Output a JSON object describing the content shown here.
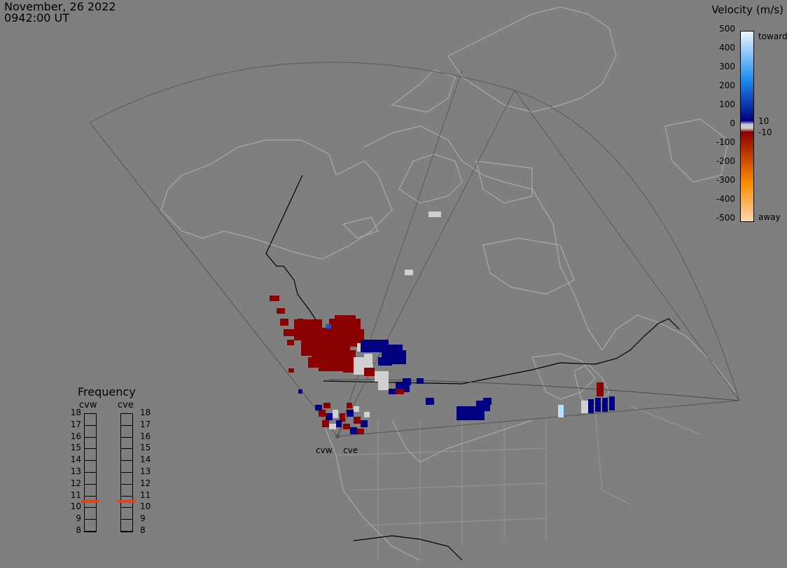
{
  "header": {
    "date": "November, 26 2022",
    "time": "0942:00 UT"
  },
  "velocity_legend": {
    "title": "Velocity (m/s)",
    "ticks": [
      "500",
      "400",
      "300",
      "200",
      "100",
      "0",
      "-100",
      "-200",
      "-300",
      "-400",
      "-500"
    ],
    "side_labels": {
      "toward": "toward",
      "plus10": "10",
      "minus10": "-10",
      "away": "away"
    },
    "colors": {
      "toward_extreme": "#eaf6ff",
      "toward_mid": "#1e8ff0",
      "toward_low": "#000080",
      "ground_scatter": "#cccccc",
      "away_low": "#8b0000",
      "away_mid": "#ff8c00",
      "away_extreme": "#ffd8b0"
    }
  },
  "frequency_panel": {
    "title": "Frequency",
    "columns": [
      "cvw",
      "cve"
    ],
    "levels": [
      "18",
      "17",
      "16",
      "15",
      "14",
      "13",
      "12",
      "11",
      "10",
      "9",
      "8"
    ],
    "current": {
      "cvw": 10.5,
      "cve": 10.5
    },
    "marker_color": "#e8401a"
  },
  "radars": {
    "west": "cvw",
    "east": "cve"
  },
  "map_colors": {
    "background": "#7f7f7f",
    "coast": "#a9a9a9",
    "border": "#000000",
    "fov": "#5a5a5a"
  }
}
